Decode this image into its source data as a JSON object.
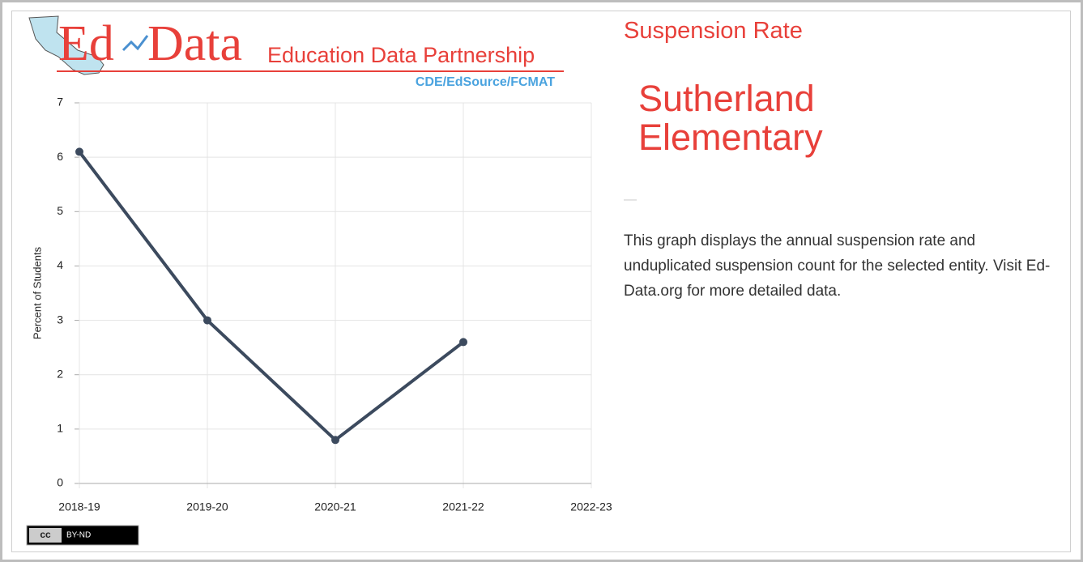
{
  "logo": {
    "word1": "Ed",
    "word2": "Data",
    "tagline": "Education Data Partnership",
    "partners": "CDE/EdSource/FCMAT"
  },
  "license": {
    "cc": "cc",
    "terms": "BY-ND"
  },
  "panel": {
    "heading": "Suspension Rate",
    "entity": "Sutherland Elementary",
    "separator": "—",
    "description": "This graph displays the annual suspension rate and unduplicated suspension count for the selected entity. Visit Ed-Data.org for more detailed data."
  },
  "chart_data": {
    "type": "line",
    "y_label": "Percent of Students",
    "categories": [
      "2018-19",
      "2019-20",
      "2020-21",
      "2021-22",
      "2022-23"
    ],
    "series": [
      {
        "name": "Suspension Rate",
        "color": "#3c4a5e",
        "values": [
          6.1,
          3.0,
          0.8,
          2.6,
          null
        ]
      }
    ],
    "ylim": [
      0,
      7
    ],
    "yticks": [
      0,
      1,
      2,
      3,
      4,
      5,
      6,
      7
    ],
    "grid": true
  }
}
